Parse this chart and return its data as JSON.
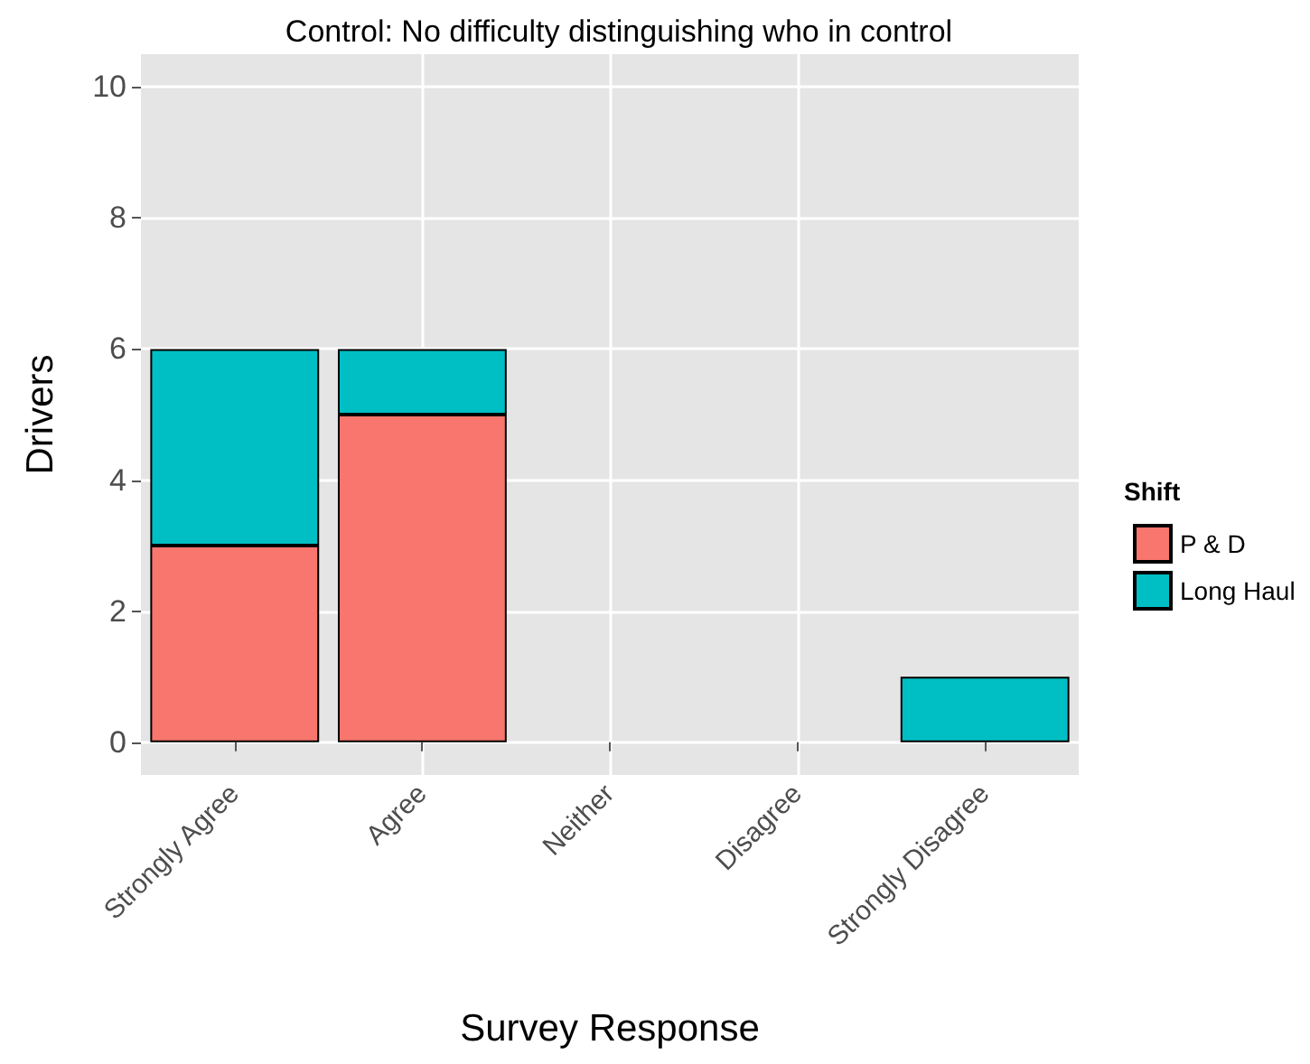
{
  "chart_data": {
    "type": "bar",
    "title": "Control: No difficulty distinguishing who in control",
    "xlabel": "Survey Response",
    "ylabel": "Drivers",
    "legend_title": "Shift",
    "categories": [
      "Strongly Agree",
      "Agree",
      "Neither",
      "Disagree",
      "Strongly Disagree"
    ],
    "series": [
      {
        "name": "P & D",
        "color": "#f8766d",
        "values": [
          3,
          5,
          0,
          0,
          0
        ]
      },
      {
        "name": "Long Haul",
        "color": "#00bfc4",
        "values": [
          3,
          1,
          0,
          0,
          1
        ]
      }
    ],
    "stacked": true,
    "ylim": [
      -0.5,
      10.5
    ],
    "yticks": [
      0,
      2,
      4,
      6,
      8,
      10
    ],
    "grid": true,
    "legend": "right"
  }
}
